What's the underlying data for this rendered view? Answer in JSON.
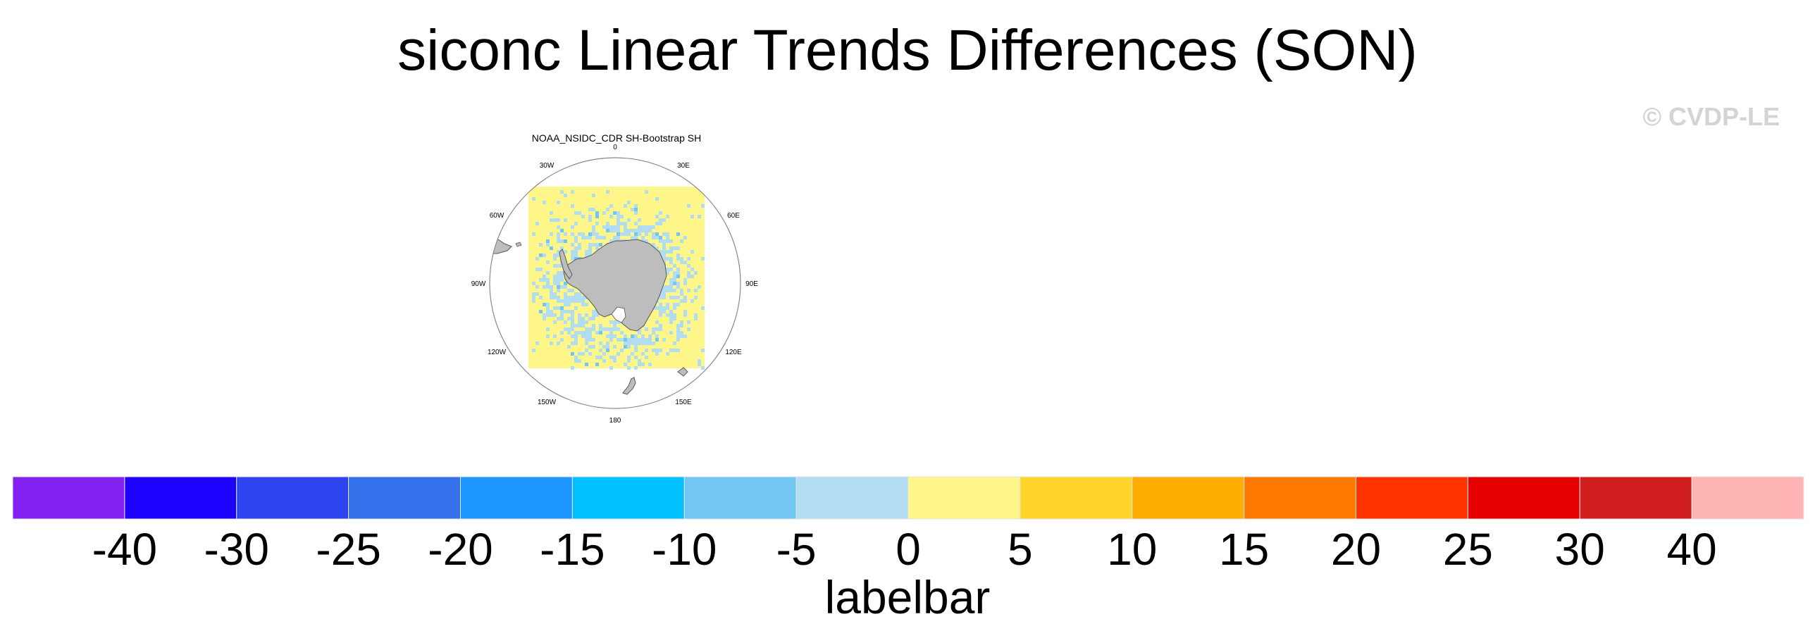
{
  "title": "siconc Linear Trends Differences (SON)",
  "credit": "© CVDP-LE",
  "panel": {
    "title": "NOAA_NSIDC_CDR SH-Bootstrap SH",
    "projection": "south-polar-stereographic",
    "lon_labels": [
      "0",
      "30E",
      "60E",
      "90E",
      "120E",
      "150E",
      "180",
      "150W",
      "120W",
      "90W",
      "60W",
      "30W"
    ]
  },
  "chart_data": {
    "type": "heatmap",
    "title": "siconc Linear Trends Differences (SON)",
    "subtitle": "NOAA_NSIDC_CDR SH-Bootstrap SH",
    "colorbar": {
      "title": "labelbar",
      "levels": [
        -40,
        -30,
        -25,
        -20,
        -15,
        -10,
        -5,
        0,
        5,
        10,
        15,
        20,
        25,
        30,
        40
      ],
      "tick_labels": [
        "-40",
        "-30",
        "-25",
        "-20",
        "-15",
        "-10",
        "-5",
        "0",
        "5",
        "10",
        "15",
        "20",
        "25",
        "30",
        "40"
      ],
      "colors": [
        "#8220f0",
        "#1e00ff",
        "#2e44ee",
        "#3470ea",
        "#1e96ff",
        "#00c0ff",
        "#72c6f4",
        "#b2dcf0",
        "#fff68a",
        "#ffd42a",
        "#ffac00",
        "#ff7a00",
        "#ff3200",
        "#e60000",
        "#d01e1e",
        "#ffb4b4"
      ]
    },
    "field_summary": "Near-zero differences over most of the grid (0 to 5 yellow) with scattered -5 to 0 (light blue) cells concentrated in a ring around the Antarctic sea-ice zone"
  },
  "colors": {
    "land": "#bdbdbd",
    "coast": "#555555",
    "background": "#ffffff"
  }
}
